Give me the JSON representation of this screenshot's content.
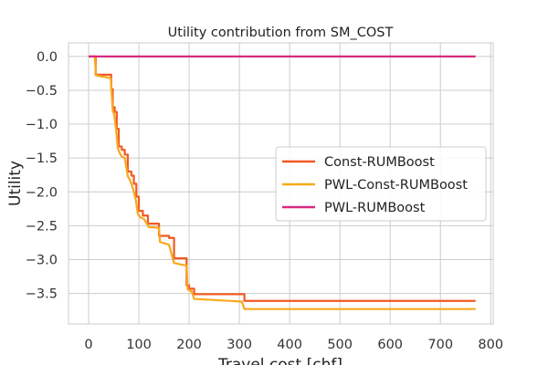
{
  "chart_data": {
    "type": "line",
    "title": "Utility contribution from SM_COST",
    "xlabel": "Travel cost [chf]",
    "ylabel": "Utility",
    "xlim": [
      -40,
      805
    ],
    "ylim": [
      -3.95,
      0.2
    ],
    "xticks": [
      0,
      100,
      200,
      300,
      400,
      500,
      600,
      700,
      800
    ],
    "yticks": [
      0.0,
      -0.5,
      -1.0,
      -1.5,
      -2.0,
      -2.5,
      -3.0,
      -3.5
    ],
    "xtick_labels": [
      "0",
      "100",
      "200",
      "300",
      "400",
      "500",
      "600",
      "700",
      "800"
    ],
    "ytick_labels": [
      "0.0",
      "−0.5",
      "−1.0",
      "−1.5",
      "−2.0",
      "−2.5",
      "−3.0",
      "−3.5"
    ],
    "grid": true,
    "legend": "center-right",
    "series": [
      {
        "name": "Const-RUMBoost",
        "color": "#f15a22",
        "step": true,
        "x": [
          0,
          14,
          45,
          48,
          52,
          56,
          60,
          66,
          72,
          78,
          85,
          90,
          95,
          100,
          108,
          118,
          140,
          160,
          170,
          195,
          200,
          210,
          310,
          770
        ],
        "y": [
          0.0,
          -0.27,
          -0.48,
          -0.75,
          -0.82,
          -1.07,
          -1.33,
          -1.38,
          -1.45,
          -1.7,
          -1.76,
          -1.88,
          -2.07,
          -2.28,
          -2.35,
          -2.47,
          -2.65,
          -2.68,
          -2.98,
          -3.38,
          -3.43,
          -3.51,
          -3.61,
          -3.61
        ]
      },
      {
        "name": "PWL-Const-RUMBoost",
        "color": "#f7a91c",
        "step": false,
        "x": [
          0,
          12,
          15,
          44,
          46,
          48,
          51,
          55,
          58,
          62,
          66,
          72,
          78,
          82,
          88,
          94,
          98,
          104,
          110,
          120,
          140,
          142,
          160,
          170,
          195,
          197,
          205,
          210,
          305,
          310,
          770
        ],
        "y": [
          0.0,
          0.0,
          -0.28,
          -0.32,
          -0.56,
          -0.8,
          -0.86,
          -1.1,
          -1.35,
          -1.43,
          -1.48,
          -1.5,
          -1.77,
          -1.82,
          -1.94,
          -2.12,
          -2.33,
          -2.38,
          -2.4,
          -2.52,
          -2.53,
          -2.74,
          -2.78,
          -3.05,
          -3.09,
          -3.44,
          -3.47,
          -3.58,
          -3.62,
          -3.73,
          -3.73
        ]
      },
      {
        "name": "PWL-RUMBoost",
        "color": "#d62b7f",
        "step": false,
        "x": [
          0,
          770
        ],
        "y": [
          0.0,
          0.0
        ]
      }
    ]
  }
}
